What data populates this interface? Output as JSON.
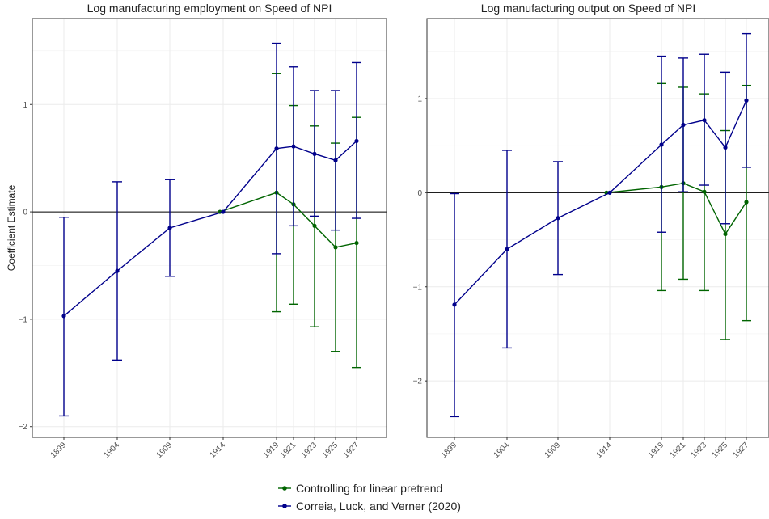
{
  "chart_data": [
    {
      "type": "line",
      "title": "Log manufacturing employment on Speed of NPI",
      "xlabel": "",
      "ylabel": "Coefficient Estimate",
      "ylim": [
        -2.1,
        1.8
      ],
      "x_ticks": [
        1899,
        1904,
        1909,
        1914,
        1919,
        1921,
        1923,
        1925,
        1927
      ],
      "y_ticks": [
        -2,
        -1,
        0,
        1
      ],
      "grid": true,
      "reference_line_y": 0,
      "series": [
        {
          "name": "Controlling for linear pretrend",
          "color": "#006400",
          "x": [
            1914,
            1919,
            1921,
            1923,
            1925,
            1927
          ],
          "y": [
            0.0,
            0.18,
            0.07,
            -0.13,
            -0.33,
            -0.29
          ],
          "ci_low": [
            0.0,
            -0.93,
            -0.86,
            -1.07,
            -1.3,
            -1.45
          ],
          "ci_high": [
            0.0,
            1.29,
            0.99,
            0.8,
            0.64,
            0.88
          ]
        },
        {
          "name": "Correia, Luck, and Verner (2020)",
          "color": "#00008B",
          "x": [
            1899,
            1904,
            1909,
            1914,
            1919,
            1921,
            1923,
            1925,
            1927
          ],
          "y": [
            -0.97,
            -0.55,
            -0.15,
            0.0,
            0.59,
            0.61,
            0.54,
            0.48,
            0.66
          ],
          "ci_low": [
            -1.9,
            -1.38,
            -0.6,
            0.0,
            -0.39,
            -0.13,
            -0.04,
            -0.17,
            -0.06
          ],
          "ci_high": [
            -0.05,
            0.28,
            0.3,
            0.0,
            1.57,
            1.35,
            1.13,
            1.13,
            1.39
          ]
        }
      ]
    },
    {
      "type": "line",
      "title": "Log manufacturing output on Speed of NPI",
      "xlabel": "",
      "ylabel": "",
      "ylim": [
        -2.6,
        1.85
      ],
      "x_ticks": [
        1899,
        1904,
        1909,
        1914,
        1919,
        1921,
        1923,
        1925,
        1927
      ],
      "y_ticks": [
        -2,
        -1,
        0,
        1
      ],
      "grid": true,
      "reference_line_y": 0,
      "series": [
        {
          "name": "Controlling for linear pretrend",
          "color": "#006400",
          "x": [
            1914,
            1919,
            1921,
            1923,
            1925,
            1927
          ],
          "y": [
            0.0,
            0.06,
            0.1,
            0.01,
            -0.44,
            -0.1
          ],
          "ci_low": [
            0.0,
            -1.04,
            -0.92,
            -1.04,
            -1.56,
            -1.36
          ],
          "ci_high": [
            0.0,
            1.16,
            1.12,
            1.05,
            0.66,
            1.14
          ]
        },
        {
          "name": "Correia, Luck, and Verner (2020)",
          "color": "#00008B",
          "x": [
            1899,
            1904,
            1909,
            1914,
            1919,
            1921,
            1923,
            1925,
            1927
          ],
          "y": [
            -1.19,
            -0.6,
            -0.27,
            0.0,
            0.51,
            0.72,
            0.77,
            0.48,
            0.98
          ],
          "ci_low": [
            -2.38,
            -1.65,
            -0.87,
            0.0,
            -0.42,
            0.01,
            0.08,
            -0.33,
            0.27
          ],
          "ci_high": [
            -0.01,
            0.45,
            0.33,
            0.0,
            1.45,
            1.43,
            1.47,
            1.28,
            1.69
          ]
        }
      ]
    }
  ],
  "legend": {
    "placement": "bottom",
    "items": [
      {
        "label": "Controlling for linear pretrend",
        "color": "#006400"
      },
      {
        "label": "Correia, Luck, and Verner (2020)",
        "color": "#00008B"
      }
    ]
  }
}
